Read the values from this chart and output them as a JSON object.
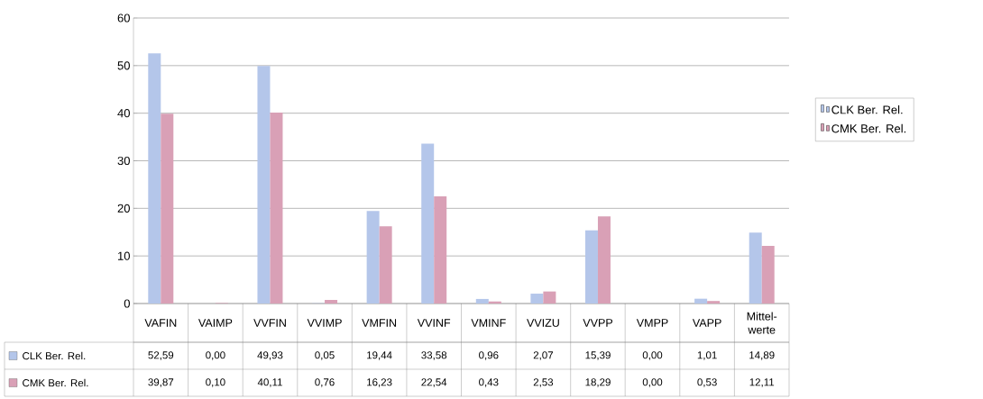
{
  "chart_data": {
    "type": "bar",
    "categories": [
      "VAFIN",
      "VAIMP",
      "VVFIN",
      "VVIMP",
      "VMFIN",
      "VVINF",
      "VMINF",
      "VVIZU",
      "VVPP",
      "VMPP",
      "VAPP",
      "Mittel-werte"
    ],
    "series": [
      {
        "name": "CLK Ber. Rel.",
        "color": "#b4c6ea",
        "values": [
          52.59,
          0.0,
          49.93,
          0.05,
          19.44,
          33.58,
          0.96,
          2.07,
          15.39,
          0.0,
          1.01,
          14.89
        ],
        "value_labels": [
          "52,59",
          "0,00",
          "49,93",
          "0,05",
          "19,44",
          "33,58",
          "0,96",
          "2,07",
          "15,39",
          "0,00",
          "1,01",
          "14,89"
        ]
      },
      {
        "name": "CMK Ber. Rel.",
        "color": "#d9a0b6",
        "values": [
          39.87,
          0.1,
          40.11,
          0.76,
          16.23,
          22.54,
          0.43,
          2.53,
          18.29,
          0.0,
          0.53,
          12.11
        ],
        "value_labels": [
          "39,87",
          "0,10",
          "40,11",
          "0,76",
          "16,23",
          "22,54",
          "0,43",
          "2,53",
          "18,29",
          "0,00",
          "0,53",
          "12,11"
        ]
      }
    ],
    "ylim": [
      0,
      60
    ],
    "yticks": [
      0,
      10,
      20,
      30,
      40,
      50,
      60
    ],
    "grid": "y",
    "legend": "right"
  }
}
